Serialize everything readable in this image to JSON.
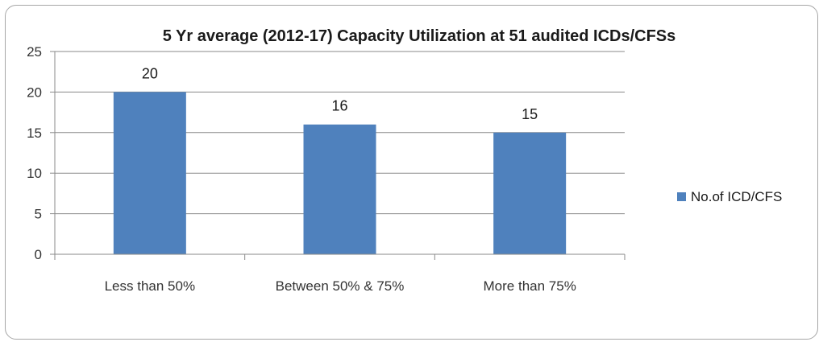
{
  "chart_data": {
    "type": "bar",
    "title": "5 Yr average (2012-17) Capacity Utilization at 51 audited ICDs/CFSs",
    "categories": [
      "Less than 50%",
      "Between 50% & 75%",
      "More than 75%"
    ],
    "series": [
      {
        "name": "No.of ICD/CFS",
        "values": [
          20,
          16,
          15
        ],
        "color": "#4f81bd"
      }
    ],
    "xlabel": "",
    "ylabel": "",
    "ylim": [
      0,
      25
    ],
    "yticks": [
      0,
      5,
      10,
      15,
      20,
      25
    ],
    "grid": true,
    "legend": "right",
    "data_labels": true
  }
}
